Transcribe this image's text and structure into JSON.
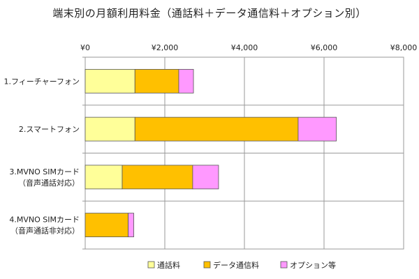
{
  "chart_data": {
    "type": "bar",
    "orientation": "horizontal",
    "stacked": true,
    "title": "端末別の月額利用料金（通話料＋データ通信料＋オプション別）",
    "xlim": [
      0,
      8000
    ],
    "x_ticks": [
      0,
      2000,
      4000,
      6000,
      8000
    ],
    "x_tick_labels": [
      "¥0",
      "¥2,000",
      "¥4,000",
      "¥6,000",
      "¥8,000"
    ],
    "x_axis_position": "top",
    "grid": true,
    "legend_position": "bottom",
    "categories": [
      [
        "1.フィーチャーフォン"
      ],
      [
        "2.スマートフォン"
      ],
      [
        "3.MVNO SIMカード",
        "（音声通話対応）"
      ],
      [
        "4.MVNO SIMカード",
        "（音声通話非対応）"
      ]
    ],
    "series": [
      {
        "name": "通話料",
        "color": "#FFFF99",
        "values": [
          1250,
          1250,
          930,
          0
        ]
      },
      {
        "name": "データ通信料",
        "color": "#FFC000",
        "values": [
          1100,
          4100,
          1770,
          1080
        ]
      },
      {
        "name": "オプション等",
        "color": "#FF99FF",
        "values": [
          370,
          960,
          650,
          140
        ]
      }
    ]
  }
}
